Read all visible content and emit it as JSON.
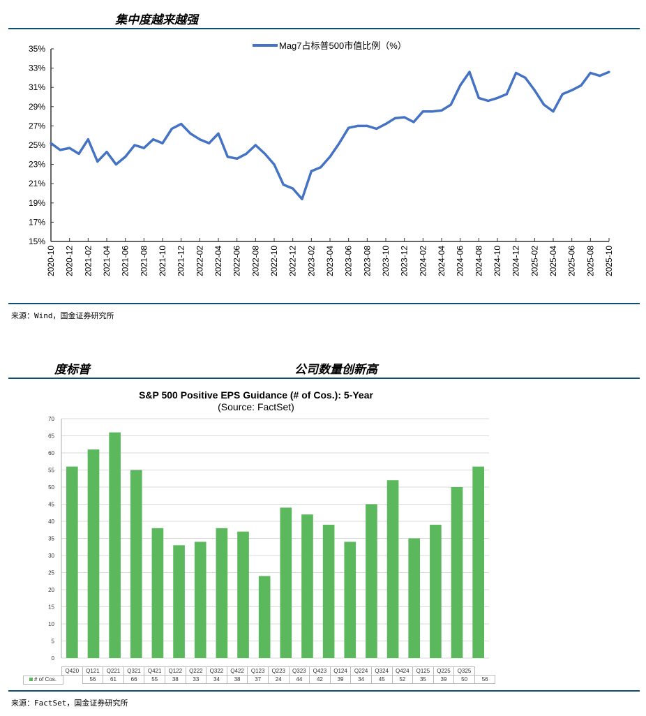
{
  "section1": {
    "title": "集中度越来越强",
    "source": "来源：Wind，国金证券研究所"
  },
  "section2": {
    "title_left": "度标普",
    "title_right": "公司数量创新高",
    "source": "来源：FactSet，国金证券研究所"
  },
  "colors": {
    "rule": "#0d4f72",
    "line": "#4472c4",
    "bar": "#5cb85c"
  },
  "chart_data": [
    {
      "type": "line",
      "title": "",
      "legend": "Mag7占标普500市值比例（%）",
      "legend_position": "top-center",
      "ylim": [
        15,
        35
      ],
      "yticks": [
        "15%",
        "17%",
        "19%",
        "21%",
        "23%",
        "25%",
        "27%",
        "29%",
        "31%",
        "33%",
        "35%"
      ],
      "xticks": [
        "2020-10",
        "2020-12",
        "2021-02",
        "2021-04",
        "2021-06",
        "2021-08",
        "2021-10",
        "2021-12",
        "2022-02",
        "2022-04",
        "2022-06",
        "2022-08",
        "2022-10",
        "2022-12",
        "2023-02",
        "2023-04",
        "2023-06",
        "2023-08",
        "2023-10",
        "2023-12",
        "2024-02",
        "2024-04",
        "2024-06",
        "2024-08",
        "2024-10",
        "2024-12",
        "2025-02",
        "2025-04",
        "2025-06",
        "2025-08",
        "2025-10"
      ],
      "x": [
        "2020-10",
        "2020-11",
        "2020-12",
        "2021-01",
        "2021-02",
        "2021-03",
        "2021-04",
        "2021-05",
        "2021-06",
        "2021-07",
        "2021-08",
        "2021-09",
        "2021-10",
        "2021-11",
        "2021-12",
        "2022-01",
        "2022-02",
        "2022-03",
        "2022-04",
        "2022-05",
        "2022-06",
        "2022-07",
        "2022-08",
        "2022-09",
        "2022-10",
        "2022-11",
        "2022-12",
        "2023-01",
        "2023-02",
        "2023-03",
        "2023-04",
        "2023-05",
        "2023-06",
        "2023-07",
        "2023-08",
        "2023-09",
        "2023-10",
        "2023-11",
        "2023-12",
        "2024-01",
        "2024-02",
        "2024-03",
        "2024-04",
        "2024-05",
        "2024-06",
        "2024-07",
        "2024-08",
        "2024-09",
        "2024-10",
        "2024-11",
        "2024-12",
        "2025-01",
        "2025-02",
        "2025-03",
        "2025-04",
        "2025-05",
        "2025-06",
        "2025-07",
        "2025-08",
        "2025-09",
        "2025-10"
      ],
      "values": [
        25.2,
        24.5,
        24.7,
        24.1,
        25.6,
        23.3,
        24.3,
        23.0,
        23.8,
        25.0,
        24.7,
        25.6,
        25.2,
        26.7,
        27.2,
        26.2,
        25.6,
        25.2,
        26.2,
        23.8,
        23.6,
        24.1,
        25.0,
        24.1,
        23.0,
        20.9,
        20.5,
        19.4,
        22.3,
        22.7,
        23.8,
        25.2,
        26.8,
        27.0,
        27.0,
        26.7,
        27.2,
        27.8,
        27.9,
        27.4,
        28.5,
        28.5,
        28.6,
        29.2,
        31.2,
        32.6,
        29.9,
        29.6,
        29.9,
        30.3,
        32.5,
        32.0,
        30.7,
        29.2,
        28.5,
        30.3,
        30.7,
        31.2,
        32.5,
        32.2,
        32.6
      ]
    },
    {
      "type": "bar",
      "title": "S&P 500 Positive EPS Guidance (# of Cos.): 5-Year",
      "subtitle": "(Source: FactSet)",
      "series_name": "# of Cos.",
      "ylim": [
        0,
        70
      ],
      "yticks": [
        "0",
        "5",
        "10",
        "15",
        "20",
        "25",
        "30",
        "35",
        "40",
        "45",
        "50",
        "55",
        "60",
        "65",
        "70"
      ],
      "categories": [
        "Q420",
        "Q121",
        "Q221",
        "Q321",
        "Q421",
        "Q122",
        "Q222",
        "Q322",
        "Q422",
        "Q123",
        "Q223",
        "Q323",
        "Q423",
        "Q124",
        "Q224",
        "Q324",
        "Q424",
        "Q125",
        "Q225",
        "Q325"
      ],
      "values": [
        56,
        61,
        66,
        55,
        38,
        33,
        34,
        38,
        37,
        24,
        44,
        42,
        39,
        34,
        45,
        52,
        35,
        39,
        50,
        56
      ]
    }
  ]
}
